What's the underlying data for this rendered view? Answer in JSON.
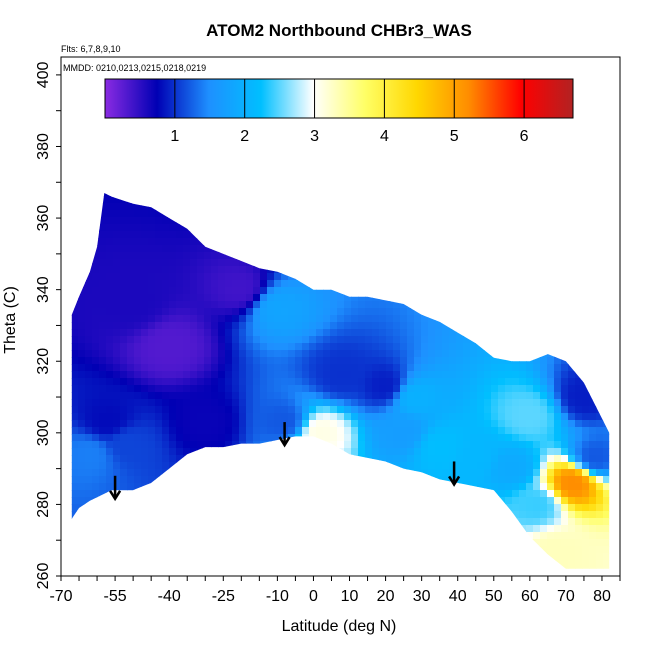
{
  "chart_data": {
    "type": "heatmap",
    "title": "ATOM2 Northbound CHBr3_WAS",
    "flights_note": "Flts: 6,7,8,9,10",
    "dates_note": "MMDD: 0210,0213,0215,0218,0219",
    "xlabel": "Latitude (deg N)",
    "ylabel": "Theta (C)",
    "xlim": [
      -70,
      85
    ],
    "ylim": [
      260,
      405
    ],
    "x_ticks": [
      -70,
      -55,
      -40,
      -25,
      -10,
      0,
      10,
      20,
      30,
      40,
      50,
      60,
      70,
      80
    ],
    "x_ticks_minor_step": 5,
    "y_ticks": [
      260,
      280,
      300,
      320,
      340,
      360,
      380,
      400
    ],
    "colorbar": {
      "range": [
        0,
        6.7
      ],
      "ticks": [
        1,
        2,
        3,
        4,
        5,
        6
      ],
      "colors": [
        "#8a2be2",
        "#0000b4",
        "#1e90ff",
        "#00bfff",
        "#ffffff",
        "#ffff66",
        "#ffd700",
        "#ff8c00",
        "#ff0000",
        "#b22222"
      ]
    },
    "data_envelope": {
      "lat": [
        -67,
        -65,
        -62,
        -60,
        -58,
        -56,
        -50,
        -45,
        -40,
        -35,
        -30,
        -25,
        -20,
        -15,
        -10,
        -5,
        0,
        5,
        10,
        15,
        20,
        25,
        30,
        35,
        40,
        45,
        50,
        55,
        60,
        65,
        70,
        75,
        80,
        82
      ],
      "top_theta": [
        333,
        338,
        345,
        352,
        367,
        366,
        364,
        363,
        360,
        357,
        352,
        350,
        348,
        346,
        345,
        343,
        340,
        340,
        338,
        338,
        337,
        336,
        333,
        331,
        328,
        325,
        321,
        320,
        320,
        322,
        320,
        314,
        304,
        300
      ],
      "bottom_theta": [
        276,
        279,
        281,
        282,
        283,
        284,
        284,
        286,
        290,
        294,
        296,
        296,
        297,
        297,
        298,
        299,
        299,
        297,
        294,
        293,
        292,
        290,
        289,
        287,
        286,
        285,
        284,
        278,
        271,
        266,
        262,
        262,
        262,
        262
      ]
    },
    "field_levels": [
      {
        "lat": -62,
        "theta": 294,
        "value": 1.4
      },
      {
        "lat": -57,
        "theta": 303,
        "value": 0.8
      },
      {
        "lat": -52,
        "theta": 297,
        "value": 1.1
      },
      {
        "lat": -50,
        "theta": 336,
        "value": 0.6
      },
      {
        "lat": -40,
        "theta": 324,
        "value": 0.3
      },
      {
        "lat": -30,
        "theta": 303,
        "value": 0.7
      },
      {
        "lat": -20,
        "theta": 340,
        "value": 0.4
      },
      {
        "lat": -10,
        "theta": 335,
        "value": 1.8
      },
      {
        "lat": -8,
        "theta": 303,
        "value": 1.2
      },
      {
        "lat": 2,
        "theta": 300,
        "value": 3.1
      },
      {
        "lat": 8,
        "theta": 316,
        "value": 1.0
      },
      {
        "lat": 20,
        "theta": 313,
        "value": 0.9
      },
      {
        "lat": 25,
        "theta": 300,
        "value": 1.7
      },
      {
        "lat": 28,
        "theta": 310,
        "value": 2.0
      },
      {
        "lat": 35,
        "theta": 296,
        "value": 2.2
      },
      {
        "lat": 45,
        "theta": 293,
        "value": 2.1
      },
      {
        "lat": 55,
        "theta": 290,
        "value": 1.9
      },
      {
        "lat": 62,
        "theta": 280,
        "value": 2.4
      },
      {
        "lat": 67,
        "theta": 267,
        "value": 3.3
      },
      {
        "lat": 72,
        "theta": 286,
        "value": 5.2
      },
      {
        "lat": 78,
        "theta": 293,
        "value": 1.2
      },
      {
        "lat": 75,
        "theta": 310,
        "value": 0.9
      },
      {
        "lat": 60,
        "theta": 305,
        "value": 2.5
      }
    ],
    "arrows": [
      {
        "lat": -55,
        "theta": 288
      },
      {
        "lat": -8,
        "theta": 303
      },
      {
        "lat": 39,
        "theta": 292
      }
    ]
  }
}
